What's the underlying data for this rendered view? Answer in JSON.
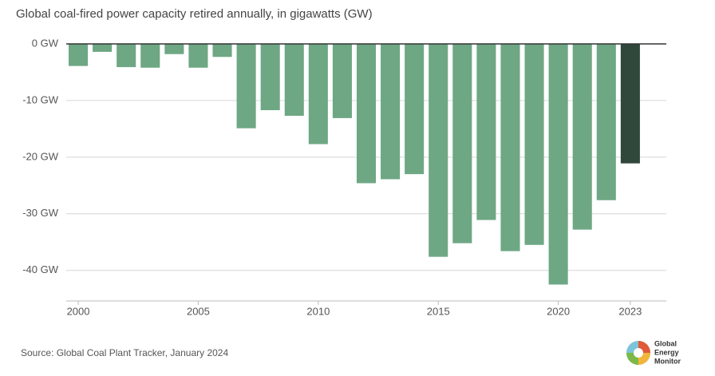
{
  "chart_data": {
    "type": "bar",
    "title": "Global coal-fired power capacity retired annually, in gigawatts (GW)",
    "x": [
      2000,
      2001,
      2002,
      2003,
      2004,
      2005,
      2006,
      2007,
      2008,
      2009,
      2010,
      2011,
      2012,
      2013,
      2014,
      2015,
      2016,
      2017,
      2018,
      2019,
      2020,
      2021,
      2022,
      2023
    ],
    "values": [
      -3.9,
      -1.4,
      -4.1,
      -4.2,
      -1.8,
      -4.2,
      -2.3,
      -14.9,
      -11.7,
      -12.7,
      -17.7,
      -13.1,
      -24.6,
      -23.9,
      -23.0,
      -37.6,
      -35.2,
      -31.1,
      -36.6,
      -35.5,
      -42.5,
      -32.8,
      -27.6,
      -21.1
    ],
    "colors": [
      "#6ea784",
      "#6ea784",
      "#6ea784",
      "#6ea784",
      "#6ea784",
      "#6ea784",
      "#6ea784",
      "#6ea784",
      "#6ea784",
      "#6ea784",
      "#6ea784",
      "#6ea784",
      "#6ea784",
      "#6ea784",
      "#6ea784",
      "#6ea784",
      "#6ea784",
      "#6ea784",
      "#6ea784",
      "#6ea784",
      "#6ea784",
      "#6ea784",
      "#6ea784",
      "#30473b"
    ],
    "xlim": [
      1999.5,
      2024.5
    ],
    "xticks": [
      2000,
      2005,
      2010,
      2015,
      2020,
      2023
    ],
    "ylim": [
      -45.4,
      0
    ],
    "yticks": [
      {
        "value": 0,
        "label": "0 GW"
      },
      {
        "value": -10,
        "label": "-10 GW"
      },
      {
        "value": -20,
        "label": "-20 GW"
      },
      {
        "value": -30,
        "label": "-30 GW"
      },
      {
        "value": -40,
        "label": "-40 GW"
      }
    ],
    "grid": true,
    "source": "Source: Global Coal Plant Tracker, January 2024",
    "logo": [
      "Global",
      "Energy",
      "Monitor"
    ]
  }
}
